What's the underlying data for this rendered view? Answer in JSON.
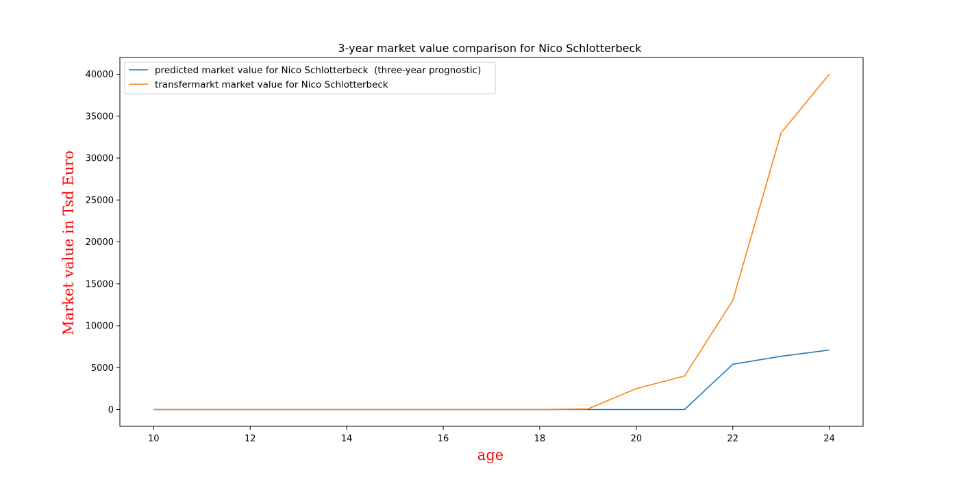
{
  "chart_data": {
    "type": "line",
    "title": "3-year market value comparison for Nico Schlotterbeck",
    "xlabel": "age",
    "ylabel": "Market value in Tsd Euro",
    "xlim": [
      9.3,
      24.7
    ],
    "ylim": [
      -2000,
      42000
    ],
    "xticks": [
      10,
      12,
      14,
      16,
      18,
      20,
      22,
      24
    ],
    "yticks": [
      0,
      5000,
      10000,
      15000,
      20000,
      25000,
      30000,
      35000,
      40000
    ],
    "grid": false,
    "legend_position": "upper-left",
    "axis_label_color": "#ff0000",
    "series": [
      {
        "name": "predicted market value for Nico Schlotterbeck  (three-year prognostic)",
        "color": "#1f77b4",
        "x": [
          10,
          11,
          12,
          13,
          14,
          15,
          16,
          17,
          18,
          19,
          20,
          21,
          22,
          23,
          24
        ],
        "y": [
          0,
          0,
          0,
          0,
          0,
          0,
          0,
          0,
          0,
          0,
          0,
          0,
          5400,
          6350,
          7100
        ]
      },
      {
        "name": "transfermarkt market value for Nico Schlotterbeck",
        "color": "#ff7f0e",
        "x": [
          10,
          11,
          12,
          13,
          14,
          15,
          16,
          17,
          18,
          19,
          20,
          21,
          22,
          23,
          24
        ],
        "y": [
          0,
          0,
          0,
          0,
          0,
          0,
          0,
          0,
          0,
          75,
          2500,
          4000,
          13000,
          33000,
          40000
        ]
      }
    ]
  }
}
